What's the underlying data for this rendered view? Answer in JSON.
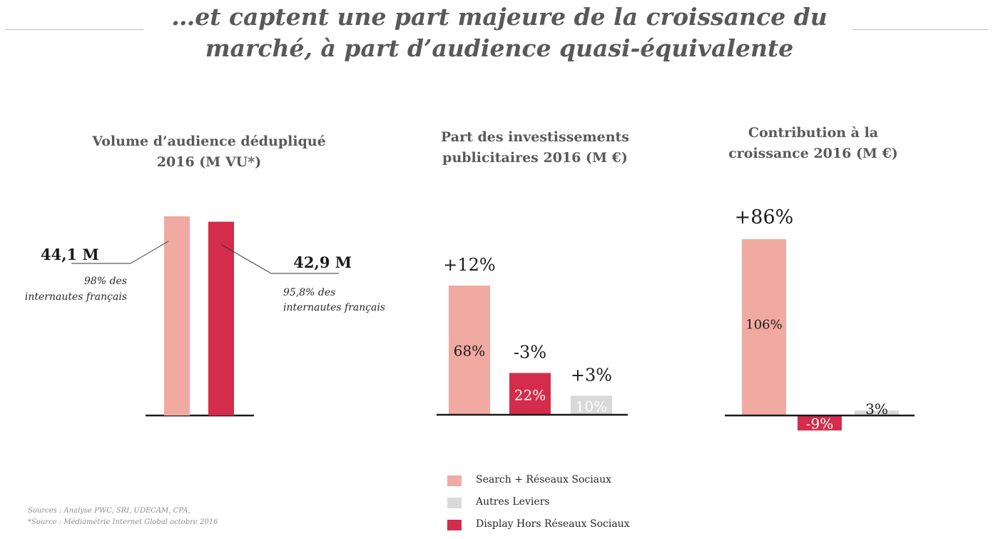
{
  "title": {
    "line1": "…et captent une part majeure de la croissance du",
    "line2": "marché, à part d’audience quasi-équivalente"
  },
  "colors": {
    "search": "#f0aaa2",
    "display": "#d42c4b",
    "autres": "#d9d9d9",
    "text": "#595959",
    "axis": "#1a1a1a"
  },
  "legend": [
    {
      "label": "Search + Réseaux Sociaux",
      "color": "#f0aaa2"
    },
    {
      "label": "Autres Leviers",
      "color": "#d9d9d9"
    },
    {
      "label": "Display Hors Réseaux Sociaux",
      "color": "#d42c4b"
    }
  ],
  "sources": {
    "line1": "Sources : Analyse PWC, SRI, UDECAM, CPA,",
    "line2": "*Source : Médiamétrie Internet Global octobre 2016"
  },
  "chart_data": [
    {
      "type": "bar",
      "title_line1": "Volume d’audience dédupliqué",
      "title_line2": "2016 (M VU*)",
      "categories": [
        "Search + Réseaux Sociaux",
        "Display Hors Réseaux Sociaux"
      ],
      "values": [
        44.1,
        42.9
      ],
      "colors": [
        "#f0aaa2",
        "#d42c4b"
      ],
      "value_labels": [
        "44,1 M",
        "42,9 M"
      ],
      "notes": [
        {
          "line1": "98% des",
          "line2": "internautes français"
        },
        {
          "line1": "95,8% des",
          "line2": "internautes français"
        }
      ]
    },
    {
      "type": "bar",
      "title_line1": "Part des investissements",
      "title_line2": "publicitaires 2016 (M €)",
      "categories": [
        "Search + Réseaux Sociaux",
        "Display Hors Réseaux Sociaux",
        "Autres Leviers"
      ],
      "values": [
        68,
        22,
        10
      ],
      "value_labels": [
        "68%",
        "22%",
        "10%"
      ],
      "growth_labels": [
        "+12%",
        "-3%",
        "+3%"
      ],
      "colors": [
        "#f0aaa2",
        "#d42c4b",
        "#d9d9d9"
      ]
    },
    {
      "type": "bar",
      "title_line1": "Contribution à la",
      "title_line2": "croissance 2016 (M €)",
      "categories": [
        "Search + Réseaux Sociaux",
        "Display Hors Réseaux Sociaux",
        "Autres Leviers"
      ],
      "values": [
        106,
        -9,
        3
      ],
      "value_labels": [
        "106%",
        "-9%",
        "3%"
      ],
      "top_label": "+86%",
      "colors": [
        "#f0aaa2",
        "#d42c4b",
        "#d9d9d9"
      ]
    }
  ]
}
